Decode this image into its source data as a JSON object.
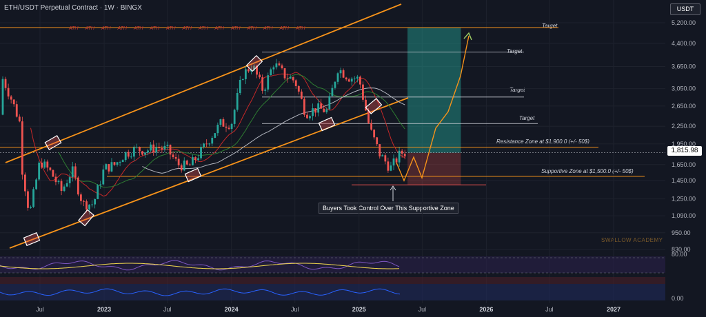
{
  "header": {
    "title": "ETH/USDT Perpetual Contract · 1W · BINGX"
  },
  "currency_button": "USDT",
  "current_price_label": "1,815.98",
  "colors": {
    "up": "#26a69a",
    "down": "#ef5350",
    "channel": "#f7931a",
    "bg": "#131722"
  },
  "annotations": {
    "ath_label": "ATH",
    "target_label": "Target",
    "resistance": "Resistance Zone at $1,900.0 (+/- 50$)",
    "support": "Supportive Zone at $1,500.0 (+/- 50$)",
    "buyers": "Buyers Took Control Over This Supportive Zone",
    "watermark": "SWALLOW ACADEMY"
  },
  "chart_data": {
    "type": "candlestick",
    "title": "ETH/USDT Perpetual Contract · 1W · BINGX",
    "y_axis": {
      "scale": "log",
      "ticks": [
        "5,200.00",
        "4,400.00",
        "3,650.00",
        "3,050.00",
        "2,650.00",
        "2,250.00",
        "1,950.00",
        "1,650.00",
        "1,450.00",
        "1,250.00",
        "1,090.00",
        "950.00",
        "830.00"
      ],
      "range": [
        800,
        5800
      ]
    },
    "x_axis": {
      "labels": [
        {
          "text": "Jul",
          "bold": false
        },
        {
          "text": "2023",
          "bold": true
        },
        {
          "text": "Jul",
          "bold": false
        },
        {
          "text": "2024",
          "bold": true
        },
        {
          "text": "Jul",
          "bold": false
        },
        {
          "text": "2025",
          "bold": true
        },
        {
          "text": "Jul",
          "bold": false
        },
        {
          "text": "2026",
          "bold": true
        },
        {
          "text": "Jul",
          "bold": false
        },
        {
          "text": "2027",
          "bold": true
        }
      ]
    },
    "price_path": [
      [
        "2022-05",
        1900
      ],
      [
        "2022-06",
        1100
      ],
      [
        "2022-07",
        1700
      ],
      [
        "2022-08",
        1550
      ],
      [
        "2022-09",
        1330
      ],
      [
        "2022-10",
        1580
      ],
      [
        "2022-11",
        1200
      ],
      [
        "2022-12",
        1200
      ],
      [
        "2023-01",
        1600
      ],
      [
        "2023-02",
        1650
      ],
      [
        "2023-03",
        1800
      ],
      [
        "2023-04",
        1870
      ],
      [
        "2023-05",
        1850
      ],
      [
        "2023-06",
        1900
      ],
      [
        "2023-07",
        1860
      ],
      [
        "2023-08",
        1650
      ],
      [
        "2023-09",
        1620
      ],
      [
        "2023-10",
        1800
      ],
      [
        "2023-11",
        2050
      ],
      [
        "2023-12",
        2300
      ],
      [
        "2024-01",
        2300
      ],
      [
        "2024-02",
        3400
      ],
      [
        "2024-03",
        3700
      ],
      [
        "2024-04",
        3000
      ],
      [
        "2024-05",
        3750
      ],
      [
        "2024-06",
        3400
      ],
      [
        "2024-07",
        3250
      ],
      [
        "2024-08",
        2500
      ],
      [
        "2024-09",
        2600
      ],
      [
        "2024-10",
        2550
      ],
      [
        "2024-11",
        3600
      ],
      [
        "2024-12",
        3350
      ],
      [
        "2025-01",
        3300
      ],
      [
        "2025-02",
        2200
      ],
      [
        "2025-03",
        1800
      ],
      [
        "2025-04",
        1600
      ],
      [
        "2025-05",
        1815.98
      ]
    ],
    "current_price": 1815.98,
    "levels": {
      "ath": 5000,
      "targets": [
        4100,
        2850,
        2300
      ],
      "resistance": 1900,
      "support": 1500
    },
    "indicators": {
      "oscillator_1_ticks": [
        "80.00"
      ],
      "oscillator_2_ticks": [
        "0.00"
      ]
    }
  }
}
